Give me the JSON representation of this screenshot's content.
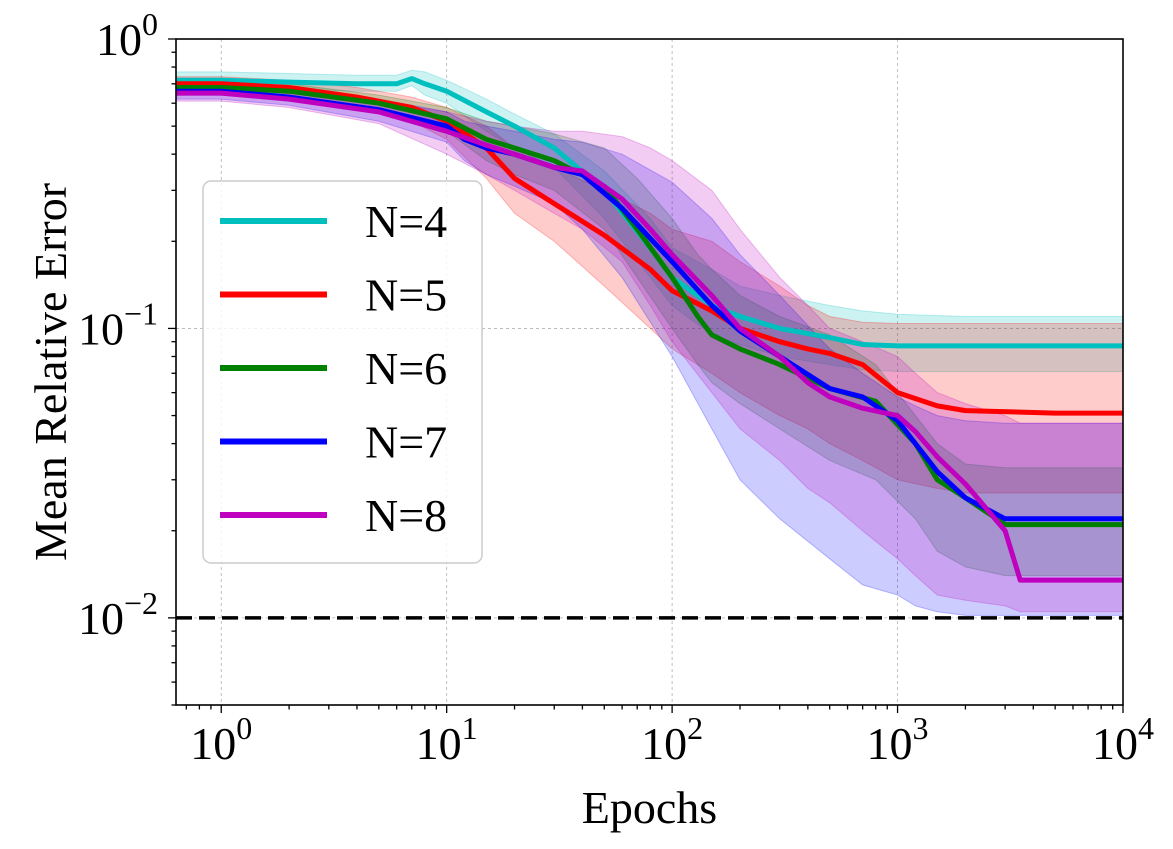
{
  "chart_data": {
    "type": "line",
    "title": "",
    "xlabel": "Epochs",
    "ylabel": "Mean Relative Error",
    "xscale": "log",
    "yscale": "log",
    "xlim": [
      0.63,
      10000
    ],
    "ylim": [
      0.005,
      1
    ],
    "grid": true,
    "legend_position": "center-left",
    "x_ticks": [
      {
        "value": 1,
        "base": "10",
        "exp": "0"
      },
      {
        "value": 10,
        "base": "10",
        "exp": "1"
      },
      {
        "value": 100,
        "base": "10",
        "exp": "2"
      },
      {
        "value": 1000,
        "base": "10",
        "exp": "3"
      },
      {
        "value": 10000,
        "base": "10",
        "exp": "4"
      }
    ],
    "y_ticks": [
      {
        "value": 1,
        "base": "10",
        "exp": "0"
      },
      {
        "value": 0.1,
        "base": "10",
        "exp": "−1"
      },
      {
        "value": 0.01,
        "base": "10",
        "exp": "−2"
      }
    ],
    "reference_line": {
      "y": 0.01,
      "style": "dashed",
      "color": "#000000"
    },
    "series": [
      {
        "name": "N=4",
        "color": "#00bfbf",
        "x": [
          0.63,
          1,
          2,
          4,
          6,
          7,
          8,
          10,
          15,
          20,
          30,
          50,
          80,
          100,
          150,
          200,
          300,
          500,
          700,
          1000,
          2000,
          5000,
          10000
        ],
        "y": [
          0.72,
          0.72,
          0.71,
          0.7,
          0.7,
          0.73,
          0.7,
          0.66,
          0.56,
          0.5,
          0.42,
          0.3,
          0.19,
          0.15,
          0.12,
          0.11,
          0.1,
          0.093,
          0.088,
          0.087,
          0.087,
          0.087,
          0.087
        ],
        "upper": [
          0.77,
          0.77,
          0.76,
          0.75,
          0.75,
          0.78,
          0.77,
          0.72,
          0.62,
          0.55,
          0.47,
          0.35,
          0.24,
          0.19,
          0.16,
          0.14,
          0.13,
          0.12,
          0.115,
          0.112,
          0.11,
          0.11,
          0.11
        ],
        "lower": [
          0.68,
          0.68,
          0.67,
          0.66,
          0.66,
          0.69,
          0.64,
          0.6,
          0.48,
          0.42,
          0.36,
          0.24,
          0.15,
          0.12,
          0.095,
          0.088,
          0.08,
          0.075,
          0.072,
          0.071,
          0.071,
          0.071,
          0.071
        ]
      },
      {
        "name": "N=5",
        "color": "#ff0000",
        "x": [
          0.63,
          1,
          2,
          4,
          7,
          10,
          15,
          20,
          30,
          50,
          80,
          100,
          150,
          200,
          300,
          400,
          500,
          700,
          1000,
          1500,
          2000,
          5000,
          10000
        ],
        "y": [
          0.7,
          0.7,
          0.68,
          0.63,
          0.58,
          0.52,
          0.42,
          0.33,
          0.27,
          0.21,
          0.16,
          0.135,
          0.115,
          0.1,
          0.09,
          0.085,
          0.082,
          0.075,
          0.06,
          0.054,
          0.052,
          0.051,
          0.051
        ],
        "upper": [
          0.74,
          0.74,
          0.72,
          0.68,
          0.63,
          0.58,
          0.5,
          0.42,
          0.36,
          0.3,
          0.25,
          0.22,
          0.2,
          0.17,
          0.14,
          0.12,
          0.11,
          0.105,
          0.104,
          0.104,
          0.104,
          0.104,
          0.104
        ],
        "lower": [
          0.66,
          0.66,
          0.64,
          0.59,
          0.52,
          0.45,
          0.33,
          0.25,
          0.2,
          0.14,
          0.1,
          0.085,
          0.07,
          0.06,
          0.05,
          0.045,
          0.04,
          0.035,
          0.03,
          0.028,
          0.027,
          0.027,
          0.027
        ]
      },
      {
        "name": "N=6",
        "color": "#008000",
        "x": [
          0.63,
          1,
          2,
          5,
          10,
          15,
          20,
          30,
          50,
          70,
          100,
          130,
          150,
          200,
          300,
          500,
          800,
          1200,
          1500,
          2000,
          3000,
          5000,
          10000
        ],
        "y": [
          0.68,
          0.68,
          0.66,
          0.6,
          0.53,
          0.45,
          0.42,
          0.38,
          0.31,
          0.22,
          0.15,
          0.11,
          0.095,
          0.085,
          0.075,
          0.062,
          0.056,
          0.04,
          0.03,
          0.026,
          0.021,
          0.021,
          0.021
        ],
        "upper": [
          0.72,
          0.72,
          0.7,
          0.64,
          0.58,
          0.52,
          0.5,
          0.47,
          0.42,
          0.33,
          0.24,
          0.18,
          0.16,
          0.13,
          0.11,
          0.095,
          0.075,
          0.05,
          0.04,
          0.034,
          0.033,
          0.033,
          0.033
        ],
        "lower": [
          0.64,
          0.64,
          0.62,
          0.56,
          0.48,
          0.38,
          0.34,
          0.3,
          0.22,
          0.15,
          0.1,
          0.075,
          0.065,
          0.055,
          0.045,
          0.035,
          0.03,
          0.022,
          0.017,
          0.015,
          0.014,
          0.014,
          0.014
        ]
      },
      {
        "name": "N=7",
        "color": "#0000ff",
        "x": [
          0.63,
          1,
          2,
          5,
          10,
          12,
          15,
          20,
          30,
          40,
          60,
          100,
          150,
          200,
          300,
          500,
          700,
          1000,
          1200,
          1500,
          2000,
          3000,
          5000,
          10000
        ],
        "y": [
          0.66,
          0.66,
          0.63,
          0.57,
          0.5,
          0.45,
          0.42,
          0.4,
          0.36,
          0.34,
          0.26,
          0.17,
          0.12,
          0.098,
          0.08,
          0.062,
          0.058,
          0.048,
          0.04,
          0.032,
          0.026,
          0.022,
          0.022,
          0.022
        ],
        "upper": [
          0.7,
          0.7,
          0.67,
          0.62,
          0.56,
          0.52,
          0.5,
          0.48,
          0.45,
          0.44,
          0.4,
          0.32,
          0.24,
          0.18,
          0.13,
          0.085,
          0.07,
          0.058,
          0.054,
          0.05,
          0.048,
          0.047,
          0.047,
          0.047
        ],
        "lower": [
          0.62,
          0.62,
          0.59,
          0.52,
          0.44,
          0.38,
          0.34,
          0.31,
          0.27,
          0.22,
          0.15,
          0.08,
          0.045,
          0.03,
          0.022,
          0.016,
          0.013,
          0.012,
          0.011,
          0.0105,
          0.0102,
          0.0102,
          0.0102,
          0.0102
        ]
      },
      {
        "name": "N=8",
        "color": "#bf00bf",
        "x": [
          0.63,
          1,
          2,
          5,
          10,
          15,
          20,
          30,
          40,
          60,
          80,
          100,
          150,
          200,
          300,
          400,
          500,
          700,
          1000,
          1200,
          1500,
          2000,
          3000,
          3500,
          5000,
          10000
        ],
        "y": [
          0.65,
          0.65,
          0.62,
          0.56,
          0.48,
          0.43,
          0.4,
          0.36,
          0.35,
          0.28,
          0.22,
          0.18,
          0.13,
          0.1,
          0.08,
          0.065,
          0.058,
          0.053,
          0.05,
          0.044,
          0.036,
          0.029,
          0.02,
          0.0135,
          0.0135,
          0.0135
        ],
        "upper": [
          0.69,
          0.69,
          0.66,
          0.61,
          0.56,
          0.52,
          0.5,
          0.48,
          0.48,
          0.46,
          0.42,
          0.38,
          0.3,
          0.22,
          0.15,
          0.12,
          0.1,
          0.09,
          0.08,
          0.07,
          0.06,
          0.055,
          0.05,
          0.047,
          0.047,
          0.047
        ],
        "lower": [
          0.61,
          0.61,
          0.58,
          0.51,
          0.4,
          0.34,
          0.3,
          0.25,
          0.22,
          0.17,
          0.12,
          0.09,
          0.06,
          0.045,
          0.035,
          0.028,
          0.025,
          0.02,
          0.016,
          0.014,
          0.012,
          0.0115,
          0.011,
          0.0105,
          0.0105,
          0.0105
        ]
      }
    ]
  }
}
